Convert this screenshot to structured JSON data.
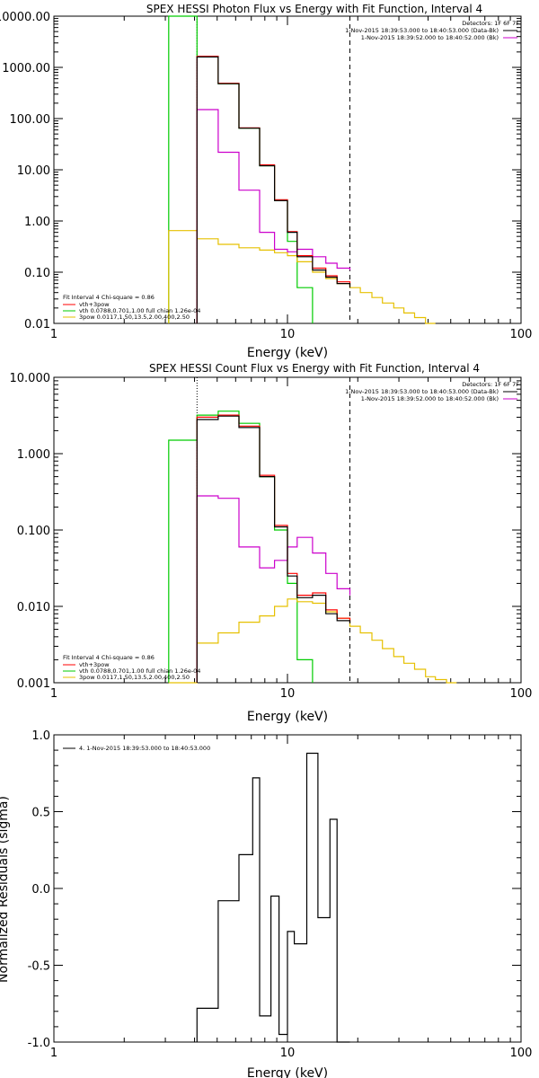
{
  "chart_data": [
    {
      "type": "line",
      "title": "SPEX HESSI Photon Flux vs Energy with Fit Function, Interval 4",
      "xlabel": "Energy (keV)",
      "ylabel": "",
      "xscale": "log",
      "yscale": "log",
      "xlim": [
        1,
        100
      ],
      "ylim": [
        0.01,
        10000
      ],
      "x_ticks": [
        "1",
        "10",
        "100"
      ],
      "y_ticks": [
        "10000.00",
        "1000.00",
        "100.00",
        "10.00",
        "1.00",
        "0.10",
        "0.01"
      ],
      "header_right": [
        "Detectors: 1F 6F 7F",
        "1-Nov-2015 18:39:53.000 to 18:40:53.000 (Data-Bk)",
        "1-Nov-2015 18:39:52.000 to 18:40:52.000 (Bk)"
      ],
      "legend": [
        "Fit Interval 4   Chi-square = 0.86",
        "vth+3pow",
        "vth 0.0788,0.701,1.00  full chian 1.26e-04",
        "3pow 0.0117,1.50,13.5,2.00,400,2.50"
      ],
      "vlines": [
        {
          "x": 4.1,
          "style": "dotted"
        },
        {
          "x": 18.5,
          "style": "dashed"
        }
      ],
      "series": [
        {
          "name": "Data-Bk",
          "color": "#000000",
          "edges": [
            4.1,
            5.05,
            6.2,
            7.6,
            8.8,
            10.0,
            11.0,
            12.8,
            14.6,
            16.3,
            18.5
          ],
          "values": [
            1600,
            480,
            65,
            12,
            2.5,
            0.6,
            0.2,
            0.11,
            0.08,
            0.06,
            0.05
          ]
        },
        {
          "name": "vth+3pow",
          "color": "#ff0000",
          "edges": [
            4.1,
            5.05,
            6.2,
            7.6,
            8.8,
            10.0,
            11.0,
            12.8,
            14.6,
            16.3,
            18.5
          ],
          "values": [
            1650,
            490,
            66,
            12.5,
            2.6,
            0.62,
            0.21,
            0.12,
            0.085,
            0.065,
            0.055
          ]
        },
        {
          "name": "Bk",
          "color": "#cc00cc",
          "edges": [
            4.1,
            5.05,
            6.2,
            7.6,
            8.8,
            10.0,
            11.0,
            12.8,
            14.6,
            16.3,
            18.5
          ],
          "values": [
            150,
            22,
            4,
            0.6,
            0.28,
            0.25,
            0.28,
            0.2,
            0.15,
            0.12,
            0.11
          ]
        },
        {
          "name": "vth",
          "color": "#00cc00",
          "edges": [
            3.1,
            4.1,
            5.05,
            6.2,
            7.6,
            8.8,
            10.0,
            11.0,
            12.8
          ],
          "values": [
            10000,
            1600,
            480,
            65,
            12,
            2.5,
            0.4,
            0.05,
            0.004
          ]
        },
        {
          "name": "3pow",
          "color": "#e6c000",
          "edges": [
            3.1,
            4.1,
            5.05,
            6.2,
            7.6,
            8.8,
            10.0,
            11.0,
            12.8,
            14.6,
            16.3,
            18.5,
            20.5,
            23.0,
            25.5,
            28.5,
            31.5,
            35.0,
            39.0,
            43.0
          ],
          "values": [
            0.65,
            0.45,
            0.35,
            0.3,
            0.27,
            0.24,
            0.21,
            0.16,
            0.1,
            0.075,
            0.06,
            0.05,
            0.04,
            0.032,
            0.025,
            0.02,
            0.016,
            0.013,
            0.01
          ]
        }
      ]
    },
    {
      "type": "line",
      "title": "SPEX HESSI Count Flux vs Energy with Fit Function, Interval 4",
      "xlabel": "Energy (keV)",
      "ylabel": "",
      "xscale": "log",
      "yscale": "log",
      "xlim": [
        1,
        100
      ],
      "ylim": [
        0.001,
        10
      ],
      "x_ticks": [
        "1",
        "10",
        "100"
      ],
      "y_ticks": [
        "10.000",
        "1.000",
        "0.100",
        "0.010",
        "0.001"
      ],
      "header_right": [
        "Detectors: 1F 6F 7F",
        "1-Nov-2015 18:39:53.000 to 18:40:53.000 (Data-Bk)",
        "1-Nov-2015 18:39:52.000 to 18:40:52.000 (Bk)"
      ],
      "legend": [
        "Fit Interval 4   Chi-square = 0.86",
        "vth+3pow",
        "vth 0.0788,0.701,1.00  full chian 1.26e-04",
        "3pow 0.0117,1.50,13.5,2.00,400,2.50"
      ],
      "vlines": [
        {
          "x": 4.1,
          "style": "dotted"
        },
        {
          "x": 18.5,
          "style": "dashed"
        }
      ],
      "series": [
        {
          "name": "Data-Bk",
          "color": "#000000",
          "edges": [
            4.1,
            5.05,
            6.2,
            7.6,
            8.8,
            10.0,
            11.0,
            12.8,
            14.6,
            16.3,
            18.5
          ],
          "values": [
            2.8,
            3.1,
            2.2,
            0.5,
            0.11,
            0.025,
            0.013,
            0.014,
            0.008,
            0.0065,
            0.006
          ]
        },
        {
          "name": "vth+3pow",
          "color": "#ff0000",
          "edges": [
            4.1,
            5.05,
            6.2,
            7.6,
            8.8,
            10.0,
            11.0,
            12.8,
            14.6,
            16.3,
            18.5
          ],
          "values": [
            3.0,
            3.2,
            2.3,
            0.52,
            0.115,
            0.027,
            0.014,
            0.015,
            0.009,
            0.007,
            0.0062
          ]
        },
        {
          "name": "Bk",
          "color": "#cc00cc",
          "edges": [
            4.1,
            5.05,
            6.2,
            7.6,
            8.8,
            10.0,
            11.0,
            12.8,
            14.6,
            16.3,
            18.5
          ],
          "values": [
            0.28,
            0.26,
            0.06,
            0.032,
            0.04,
            0.06,
            0.08,
            0.05,
            0.027,
            0.017,
            0.014
          ]
        },
        {
          "name": "vth",
          "color": "#00cc00",
          "edges": [
            3.1,
            4.1,
            5.05,
            6.2,
            7.6,
            8.8,
            10.0,
            11.0,
            12.8
          ],
          "values": [
            1.5,
            3.2,
            3.6,
            2.5,
            0.5,
            0.1,
            0.02,
            0.002,
            0.0008
          ]
        },
        {
          "name": "3pow",
          "color": "#e6c000",
          "edges": [
            3.1,
            4.1,
            5.05,
            6.2,
            7.6,
            8.8,
            10.0,
            11.0,
            12.8,
            14.6,
            16.3,
            18.5,
            20.5,
            23.0,
            25.5,
            28.5,
            31.5,
            35.0,
            39.0,
            43.0,
            48.0,
            53.0
          ],
          "values": [
            0.0002,
            0.0033,
            0.0045,
            0.0062,
            0.0075,
            0.01,
            0.0125,
            0.0115,
            0.011,
            0.0085,
            0.007,
            0.0055,
            0.0045,
            0.0036,
            0.0028,
            0.0022,
            0.0018,
            0.0015,
            0.0012,
            0.0011,
            0.001
          ]
        }
      ]
    },
    {
      "type": "line",
      "title": "",
      "xlabel": "Energy (keV)",
      "ylabel": "Normalized Residuals (sigma)",
      "xscale": "log",
      "yscale": "linear",
      "xlim": [
        1,
        100
      ],
      "ylim": [
        -1.0,
        1.0
      ],
      "x_ticks": [
        "1",
        "10",
        "100"
      ],
      "y_ticks": [
        "1.0",
        "0.5",
        "0.0",
        "-0.5",
        "-1.0"
      ],
      "legend": [
        "4.  1-Nov-2015 18:39:53.000 to 18:40:53.000"
      ],
      "series": [
        {
          "name": "4.  1-Nov-2015 18:39:53.000 to 18:40:53.000",
          "color": "#000000",
          "edges": [
            4.1,
            5.05,
            6.2,
            7.1,
            7.6,
            8.5,
            9.2,
            10.0,
            10.7,
            12.1,
            13.5,
            15.2,
            16.3,
            18.5
          ],
          "values": [
            -0.78,
            -0.08,
            0.22,
            0.72,
            -0.83,
            -0.05,
            -0.95,
            -0.28,
            -0.36,
            0.88,
            -0.19,
            0.45,
            -1.0
          ]
        }
      ]
    }
  ]
}
